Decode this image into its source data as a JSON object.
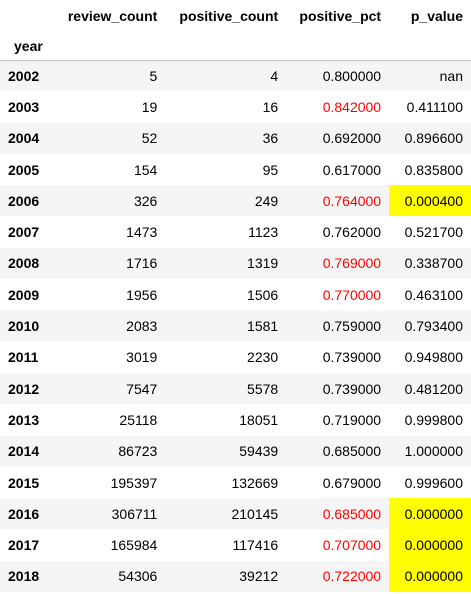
{
  "table": {
    "columns": [
      "review_count",
      "positive_count",
      "positive_pct",
      "p_value"
    ],
    "index_name": "year",
    "colors": {
      "significant_pct_text": "#ff0000",
      "significant_pvalue_bg": "#ffff00",
      "stripe_bg": "#f5f5f5"
    },
    "rows": [
      {
        "year": "2002",
        "review_count": "5",
        "positive_count": "4",
        "positive_pct": "0.800000",
        "p_value": "nan",
        "pct_red": false,
        "p_highlight": false
      },
      {
        "year": "2003",
        "review_count": "19",
        "positive_count": "16",
        "positive_pct": "0.842000",
        "p_value": "0.411100",
        "pct_red": true,
        "p_highlight": false
      },
      {
        "year": "2004",
        "review_count": "52",
        "positive_count": "36",
        "positive_pct": "0.692000",
        "p_value": "0.896600",
        "pct_red": false,
        "p_highlight": false
      },
      {
        "year": "2005",
        "review_count": "154",
        "positive_count": "95",
        "positive_pct": "0.617000",
        "p_value": "0.835800",
        "pct_red": false,
        "p_highlight": false
      },
      {
        "year": "2006",
        "review_count": "326",
        "positive_count": "249",
        "positive_pct": "0.764000",
        "p_value": "0.000400",
        "pct_red": true,
        "p_highlight": true
      },
      {
        "year": "2007",
        "review_count": "1473",
        "positive_count": "1123",
        "positive_pct": "0.762000",
        "p_value": "0.521700",
        "pct_red": false,
        "p_highlight": false
      },
      {
        "year": "2008",
        "review_count": "1716",
        "positive_count": "1319",
        "positive_pct": "0.769000",
        "p_value": "0.338700",
        "pct_red": true,
        "p_highlight": false
      },
      {
        "year": "2009",
        "review_count": "1956",
        "positive_count": "1506",
        "positive_pct": "0.770000",
        "p_value": "0.463100",
        "pct_red": true,
        "p_highlight": false
      },
      {
        "year": "2010",
        "review_count": "2083",
        "positive_count": "1581",
        "positive_pct": "0.759000",
        "p_value": "0.793400",
        "pct_red": false,
        "p_highlight": false
      },
      {
        "year": "2011",
        "review_count": "3019",
        "positive_count": "2230",
        "positive_pct": "0.739000",
        "p_value": "0.949800",
        "pct_red": false,
        "p_highlight": false
      },
      {
        "year": "2012",
        "review_count": "7547",
        "positive_count": "5578",
        "positive_pct": "0.739000",
        "p_value": "0.481200",
        "pct_red": false,
        "p_highlight": false
      },
      {
        "year": "2013",
        "review_count": "25118",
        "positive_count": "18051",
        "positive_pct": "0.719000",
        "p_value": "0.999800",
        "pct_red": false,
        "p_highlight": false
      },
      {
        "year": "2014",
        "review_count": "86723",
        "positive_count": "59439",
        "positive_pct": "0.685000",
        "p_value": "1.000000",
        "pct_red": false,
        "p_highlight": false
      },
      {
        "year": "2015",
        "review_count": "195397",
        "positive_count": "132669",
        "positive_pct": "0.679000",
        "p_value": "0.999600",
        "pct_red": false,
        "p_highlight": false
      },
      {
        "year": "2016",
        "review_count": "306711",
        "positive_count": "210145",
        "positive_pct": "0.685000",
        "p_value": "0.000000",
        "pct_red": true,
        "p_highlight": true
      },
      {
        "year": "2017",
        "review_count": "165984",
        "positive_count": "117416",
        "positive_pct": "0.707000",
        "p_value": "0.000000",
        "pct_red": true,
        "p_highlight": true
      },
      {
        "year": "2018",
        "review_count": "54306",
        "positive_count": "39212",
        "positive_pct": "0.722000",
        "p_value": "0.000000",
        "pct_red": true,
        "p_highlight": true
      }
    ]
  }
}
